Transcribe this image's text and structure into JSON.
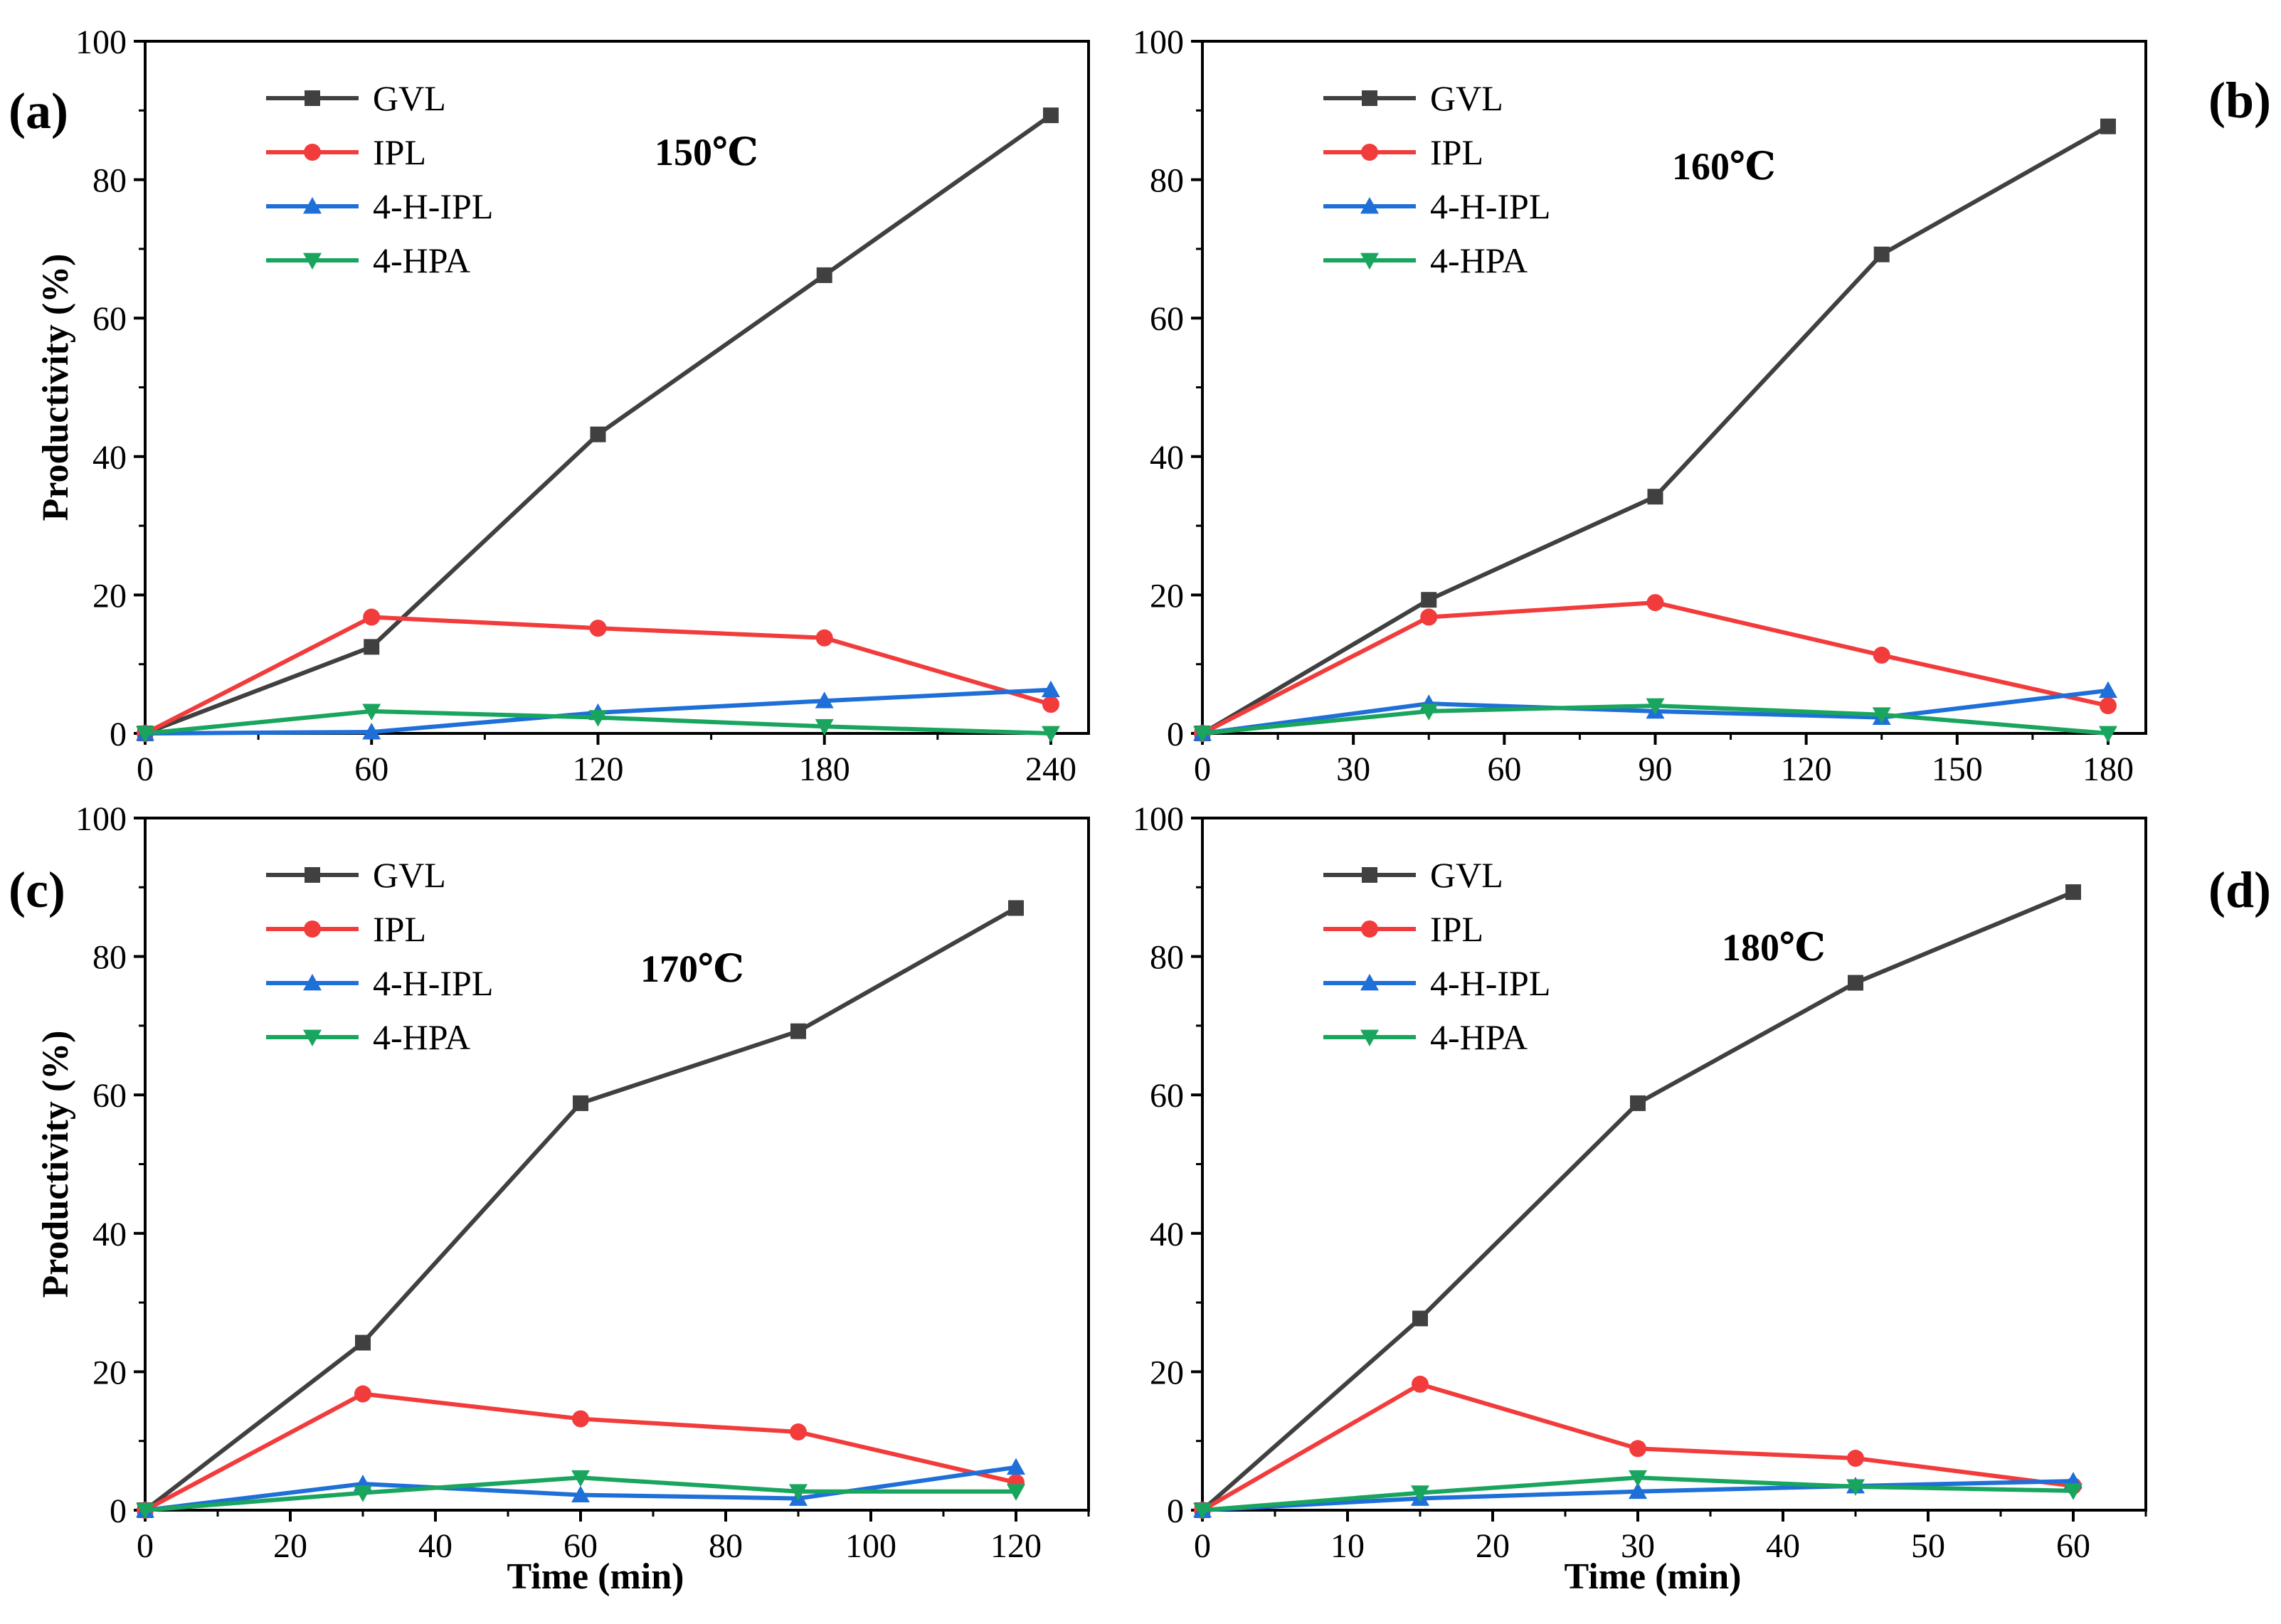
{
  "figure": {
    "ylabel": "Productivity (%)",
    "xlabel": "Time (min)",
    "colors": {
      "GVL": "#404040",
      "IPL": "#f23c3c",
      "4-H-IPL": "#1f6fd8",
      "4-HPA": "#19a55e"
    },
    "markers": {
      "GVL": "square",
      "IPL": "circle",
      "4-H-IPL": "triangle-up",
      "4-HPA": "triangle-down"
    }
  },
  "chart_data": [
    {
      "type": "line",
      "panel": "(a)",
      "title": "150℃",
      "xlabel": "",
      "ylabel": "Productivity (%)",
      "xlim": [
        0,
        250
      ],
      "ylim": [
        0,
        100
      ],
      "xticks": [
        0,
        60,
        120,
        180,
        240
      ],
      "yticks": [
        0,
        20,
        40,
        60,
        80,
        100
      ],
      "x": [
        0,
        60,
        120,
        180,
        240
      ],
      "series": [
        {
          "name": "GVL",
          "values": [
            0,
            12.5,
            43.2,
            66.2,
            89.3
          ]
        },
        {
          "name": "IPL",
          "values": [
            0,
            16.8,
            15.2,
            13.8,
            4.2
          ]
        },
        {
          "name": "4-H-IPL",
          "values": [
            0,
            0.2,
            3.0,
            4.7,
            6.3
          ]
        },
        {
          "name": "4-HPA",
          "values": [
            0,
            3.2,
            2.3,
            1.0,
            0
          ]
        }
      ],
      "legend": [
        "GVL",
        "IPL",
        "4-H-IPL",
        "4-HPA"
      ]
    },
    {
      "type": "line",
      "panel": "(b)",
      "title": "160℃",
      "xlabel": "",
      "ylabel": "",
      "xlim": [
        0,
        187.5
      ],
      "ylim": [
        0,
        100
      ],
      "xticks": [
        0,
        30,
        60,
        90,
        120,
        150,
        180
      ],
      "yticks": [
        0,
        20,
        40,
        60,
        80,
        100
      ],
      "x": [
        0,
        45,
        90,
        135,
        180
      ],
      "series": [
        {
          "name": "GVL",
          "values": [
            0,
            19.3,
            34.2,
            69.2,
            87.7
          ]
        },
        {
          "name": "IPL",
          "values": [
            0,
            16.8,
            18.9,
            11.3,
            4.0
          ]
        },
        {
          "name": "4-H-IPL",
          "values": [
            0,
            4.3,
            3.2,
            2.3,
            6.2
          ]
        },
        {
          "name": "4-HPA",
          "values": [
            0,
            3.2,
            4.0,
            2.7,
            0
          ]
        }
      ],
      "legend": [
        "GVL",
        "IPL",
        "4-H-IPL",
        "4-HPA"
      ]
    },
    {
      "type": "line",
      "panel": "(c)",
      "title": "170℃",
      "xlabel": "Time (min)",
      "ylabel": "Productivity (%)",
      "xlim": [
        0,
        130
      ],
      "ylim": [
        0,
        100
      ],
      "xticks": [
        0,
        20,
        40,
        60,
        80,
        100,
        120
      ],
      "yticks": [
        0,
        20,
        40,
        60,
        80,
        100
      ],
      "x": [
        0,
        30,
        60,
        90,
        120
      ],
      "series": [
        {
          "name": "GVL",
          "values": [
            0,
            24.2,
            58.8,
            69.2,
            87.0
          ]
        },
        {
          "name": "IPL",
          "values": [
            0,
            16.8,
            13.2,
            11.3,
            4.0
          ]
        },
        {
          "name": "4-H-IPL",
          "values": [
            0,
            3.8,
            2.2,
            1.7,
            6.2
          ]
        },
        {
          "name": "4-HPA",
          "values": [
            0,
            2.5,
            4.7,
            2.7,
            2.7
          ]
        }
      ],
      "legend": [
        "GVL",
        "IPL",
        "4-H-IPL",
        "4-HPA"
      ]
    },
    {
      "type": "line",
      "panel": "(d)",
      "title": "180℃",
      "xlabel": "Time (min)",
      "ylabel": "",
      "xlim": [
        0,
        65
      ],
      "ylim": [
        0,
        100
      ],
      "xticks": [
        0,
        10,
        20,
        30,
        40,
        50,
        60
      ],
      "yticks": [
        0,
        20,
        40,
        60,
        80,
        100
      ],
      "x": [
        0,
        15,
        30,
        45,
        60
      ],
      "series": [
        {
          "name": "GVL",
          "values": [
            0,
            27.7,
            58.8,
            76.2,
            89.3
          ]
        },
        {
          "name": "IPL",
          "values": [
            0,
            18.2,
            8.9,
            7.5,
            3.5
          ]
        },
        {
          "name": "4-H-IPL",
          "values": [
            0,
            1.7,
            2.7,
            3.5,
            4.2
          ]
        },
        {
          "name": "4-HPA",
          "values": [
            0,
            2.5,
            4.7,
            3.4,
            2.8
          ]
        }
      ],
      "legend": [
        "GVL",
        "IPL",
        "4-H-IPL",
        "4-HPA"
      ]
    }
  ]
}
